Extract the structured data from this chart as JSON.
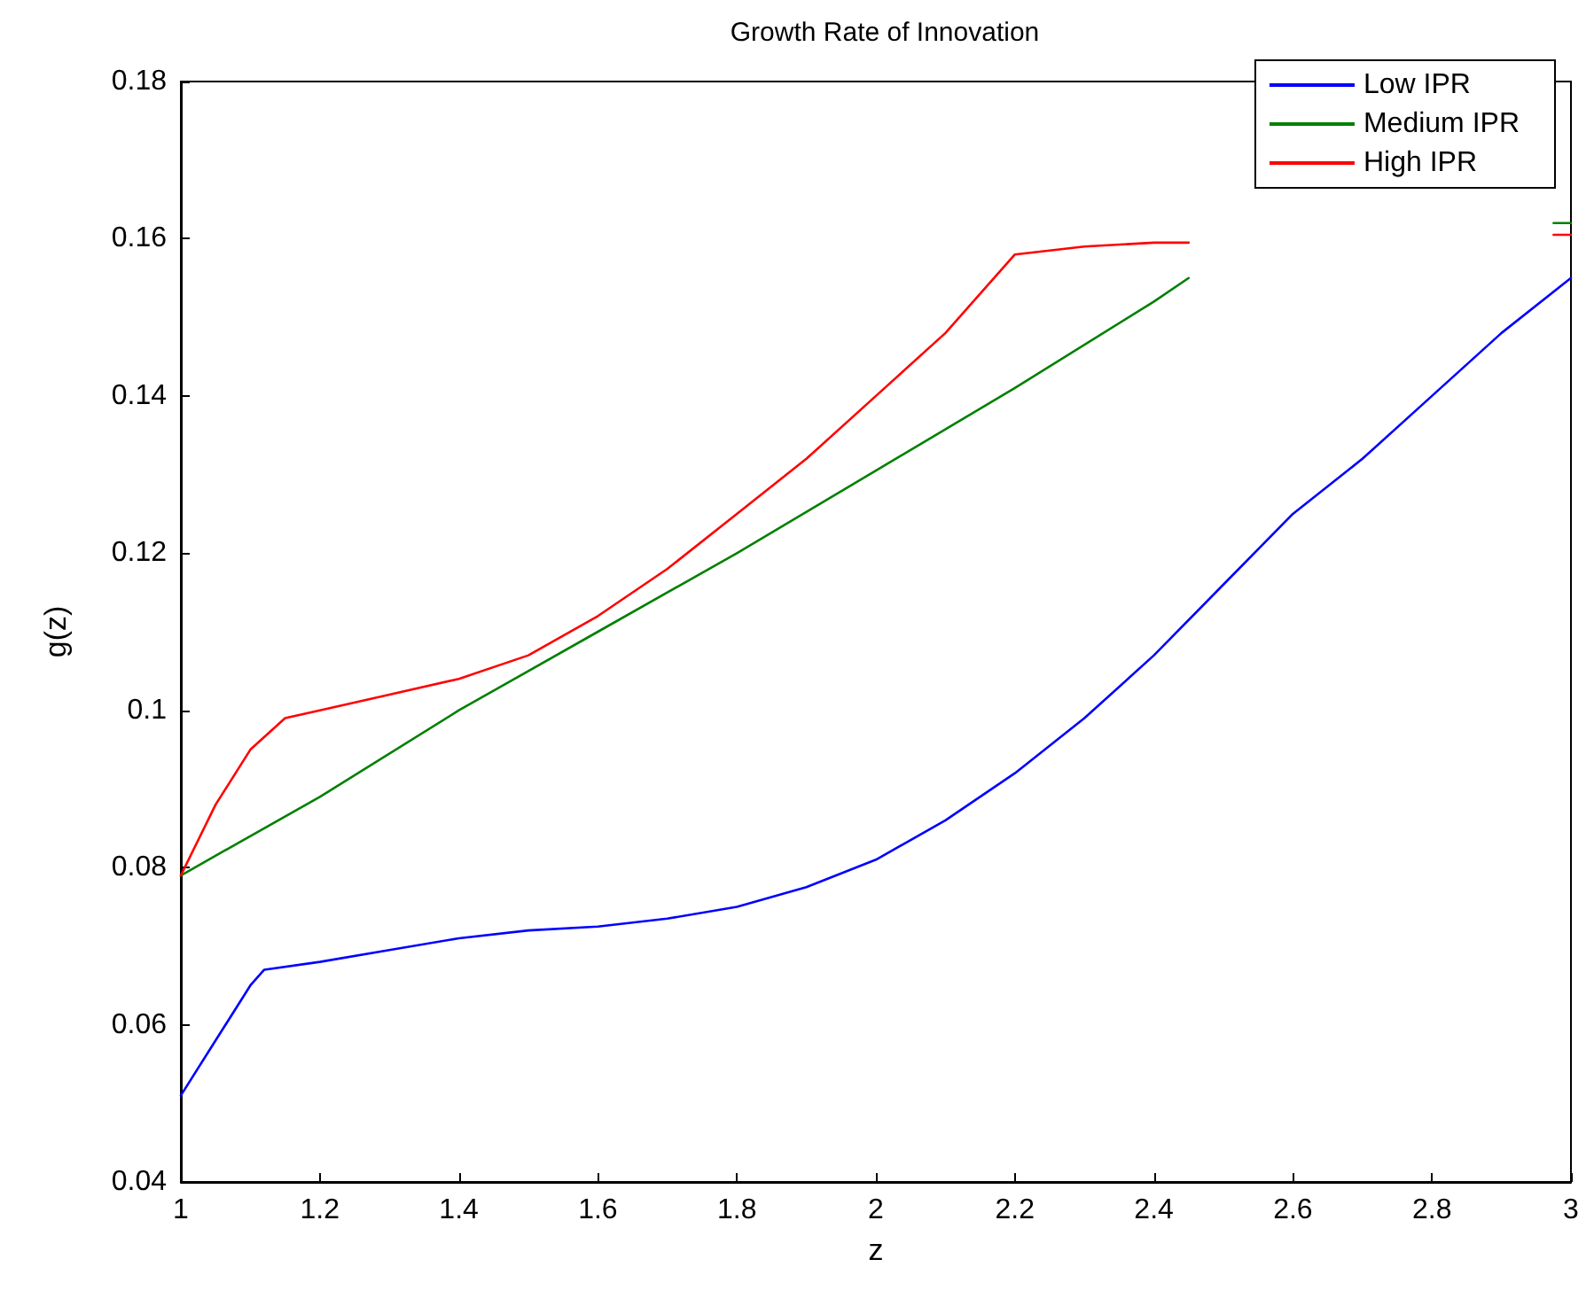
{
  "chart_data": {
    "type": "line",
    "title": "Growth Rate of Innovation",
    "xlabel": "z",
    "ylabel": "g(z)",
    "xlim": [
      1,
      3
    ],
    "xticks": [
      1,
      1.2,
      1.4,
      1.6,
      1.8,
      2,
      2.2,
      2.4,
      2.6,
      2.8,
      3
    ],
    "ylim": [
      0.04,
      0.18
    ],
    "yticks": [
      0.04,
      0.06,
      0.08,
      0.1,
      0.12,
      0.14,
      0.16,
      0.18
    ],
    "grid": false,
    "legend": "top right",
    "marker": "none",
    "line_style": "solid",
    "series": [
      {
        "name": "Low IPR",
        "color": "#0000ff",
        "x": [
          1,
          1.05,
          1.1,
          1.12,
          1.2,
          1.3,
          1.4,
          1.5,
          1.6,
          1.7,
          1.8,
          1.9,
          2,
          2.1,
          2.2,
          2.3,
          2.4,
          2.5,
          2.6,
          2.7,
          2.8,
          2.9,
          3
        ],
        "values": [
          0.051,
          0.058,
          0.065,
          0.067,
          0.068,
          0.0695,
          0.071,
          0.072,
          0.0725,
          0.0735,
          0.075,
          0.0775,
          0.081,
          0.086,
          0.092,
          0.099,
          0.107,
          0.116,
          0.125,
          0.132,
          0.14,
          0.148,
          0.155
        ]
      },
      {
        "name": "Medium IPR",
        "color": "#008000",
        "x": [
          1,
          1.2,
          1.4,
          1.6,
          1.8,
          2,
          2.2,
          2.4,
          2.45,
          2.97,
          2.975,
          3
        ],
        "values": [
          0.079,
          0.089,
          0.1,
          0.11,
          0.12,
          0.1305,
          0.141,
          0.152,
          0.155,
          null,
          0.162,
          0.162
        ]
      },
      {
        "name": "High IPR",
        "color": "#ff0000",
        "x": [
          1,
          1.05,
          1.1,
          1.15,
          1.2,
          1.3,
          1.4,
          1.5,
          1.6,
          1.7,
          1.8,
          1.9,
          2,
          2.1,
          2.2,
          2.3,
          2.4,
          2.45,
          2.97,
          2.975,
          3
        ],
        "values": [
          0.079,
          0.088,
          0.095,
          0.099,
          0.1,
          0.102,
          0.104,
          0.107,
          0.112,
          0.118,
          0.125,
          0.132,
          0.14,
          0.148,
          0.158,
          0.159,
          0.1595,
          0.1595,
          null,
          0.1605,
          0.1605
        ]
      }
    ]
  }
}
